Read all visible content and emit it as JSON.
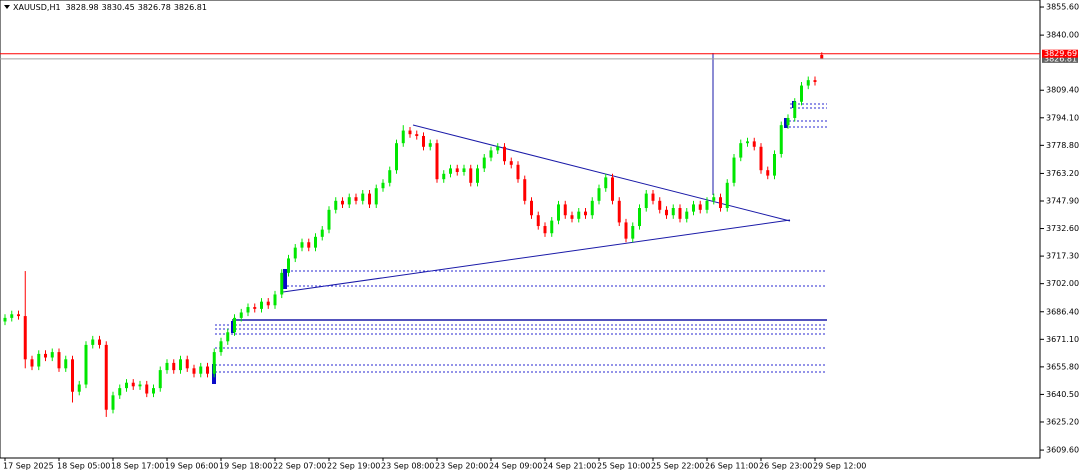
{
  "chart_data": {
    "type": "candlestick",
    "title": "XAUUSD,H1",
    "ask_price": 3829.69,
    "up_color": "#00e600",
    "down_color": "#ff0000",
    "ylim": [
      3605.2,
      3859.5
    ],
    "yticks": [
      {
        "value": 3855.6,
        "label": "3855.60"
      },
      {
        "value": 3840,
        "label": "3840.00"
      },
      {
        "value": 3809.4,
        "label": "3809.40"
      },
      {
        "value": 3794.1,
        "label": "3794.10"
      },
      {
        "value": 3778.8,
        "label": "3778.80"
      },
      {
        "value": 3763.2,
        "label": "3763.20"
      },
      {
        "value": 3747.9,
        "label": "3747.90"
      },
      {
        "value": 3732.6,
        "label": "3732.60"
      },
      {
        "value": 3717.3,
        "label": "3717.30"
      },
      {
        "value": 3702,
        "label": "3702.00"
      },
      {
        "value": 3686.4,
        "label": "3686.40"
      },
      {
        "value": 3671.1,
        "label": "3671.10"
      },
      {
        "value": 3655.8,
        "label": "3655.80"
      },
      {
        "value": 3640.5,
        "label": "3640.50"
      },
      {
        "value": 3625.2,
        "label": "3625.20"
      },
      {
        "value": 3609.6,
        "label": "3609.60"
      }
    ],
    "categories": [
      "17 Sep 2025",
      null,
      null,
      null,
      null,
      null,
      null,
      null,
      "18 Sep 05:00",
      null,
      null,
      null,
      null,
      null,
      null,
      null,
      "18 Sep 17:00",
      null,
      null,
      null,
      null,
      null,
      null,
      null,
      "19 Sep 06:00",
      null,
      null,
      null,
      null,
      null,
      null,
      null,
      "19 Sep 18:00",
      null,
      null,
      null,
      null,
      null,
      null,
      null,
      "22 Sep 07:00",
      null,
      null,
      null,
      null,
      null,
      null,
      null,
      "22 Sep 19:00",
      null,
      null,
      null,
      null,
      null,
      null,
      null,
      "23 Sep 08:00",
      null,
      null,
      null,
      null,
      null,
      null,
      null,
      "23 Sep 20:00",
      null,
      null,
      null,
      null,
      null,
      null,
      null,
      "24 Sep 09:00",
      null,
      null,
      null,
      null,
      null,
      null,
      null,
      "24 Sep 21:00",
      null,
      null,
      null,
      null,
      null,
      null,
      null,
      "25 Sep 10:00",
      null,
      null,
      null,
      null,
      null,
      null,
      null,
      "25 Sep 22:00",
      null,
      null,
      null,
      null,
      null,
      null,
      null,
      "26 Sep 11:00",
      null,
      null,
      null,
      null,
      null,
      null,
      null,
      "26 Sep 23:00",
      null,
      null,
      null,
      null,
      null,
      null,
      null,
      "29 Sep 12:00",
      null
    ],
    "open": [
      3681,
      3683,
      3685,
      3684,
      3660,
      3656,
      3663,
      3661,
      3664,
      3655,
      3660,
      3642,
      3646,
      3668,
      3671,
      3668,
      3632,
      3640,
      3644,
      3647,
      3645,
      3646,
      3641,
      3644,
      3654,
      3658,
      3654,
      3660,
      3655,
      3652,
      3656,
      3652,
      3664,
      3670,
      3675,
      3683,
      3686,
      3689,
      3688,
      3692,
      3690,
      3696,
      3708,
      3716,
      3722,
      3725,
      3722,
      3728,
      3732,
      3743,
      3748,
      3746,
      3750,
      3748,
      3752,
      3746,
      3755,
      3758,
      3765,
      3780,
      3787,
      3785,
      3784,
      3778,
      3780,
      3760,
      3763,
      3766,
      3764,
      3766,
      3758,
      3766,
      3772,
      3776,
      3778,
      3770,
      3768,
      3760,
      3748,
      3740,
      3734,
      3730,
      3737,
      3746,
      3740,
      3738,
      3742,
      3740,
      3748,
      3755,
      3761,
      3748,
      3736,
      3727,
      3734,
      3744,
      3752,
      3748,
      3743,
      3740,
      3744,
      3738,
      3742,
      3746,
      3743,
      3748,
      3750,
      3744,
      3758,
      3772,
      3780,
      3781,
      3778,
      3765,
      3762,
      3774,
      3790,
      3794,
      3803,
      3812,
      3815,
      3828.98
    ],
    "high": [
      3685,
      3687,
      3687,
      3709,
      3662,
      3665,
      3665,
      3666,
      3666,
      3662,
      3662,
      3648,
      3670,
      3673,
      3673,
      3670,
      3642,
      3646,
      3649,
      3649,
      3648,
      3648,
      3646,
      3656,
      3660,
      3660,
      3662,
      3662,
      3657,
      3658,
      3658,
      3666,
      3672,
      3677,
      3685,
      3688,
      3691,
      3691,
      3694,
      3694,
      3698,
      3710,
      3718,
      3724,
      3727,
      3727,
      3730,
      3734,
      3745,
      3750,
      3750,
      3752,
      3752,
      3754,
      3754,
      3757,
      3760,
      3767,
      3782,
      3790,
      3789,
      3787,
      3786,
      3782,
      3782,
      3765,
      3768,
      3768,
      3768,
      3768,
      3768,
      3774,
      3778,
      3780,
      3780,
      3772,
      3770,
      3762,
      3750,
      3742,
      3736,
      3739,
      3748,
      3748,
      3742,
      3744,
      3744,
      3750,
      3757,
      3763,
      3763,
      3750,
      3738,
      3736,
      3746,
      3754,
      3754,
      3750,
      3745,
      3746,
      3746,
      3744,
      3748,
      3748,
      3750,
      3752,
      3752,
      3760,
      3774,
      3782,
      3783,
      3783,
      3780,
      3767,
      3776,
      3792,
      3796,
      3805,
      3814,
      3817,
      3817,
      3830.45
    ],
    "low": [
      3679,
      3681,
      3682,
      3655,
      3654,
      3654,
      3659,
      3659,
      3653,
      3653,
      3636,
      3640,
      3644,
      3666,
      3666,
      3628,
      3630,
      3638,
      3642,
      3643,
      3643,
      3639,
      3639,
      3642,
      3652,
      3652,
      3652,
      3653,
      3650,
      3650,
      3650,
      3650,
      3662,
      3668,
      3673,
      3681,
      3684,
      3686,
      3686,
      3688,
      3688,
      3694,
      3706,
      3714,
      3720,
      3720,
      3720,
      3726,
      3730,
      3741,
      3744,
      3744,
      3746,
      3746,
      3744,
      3744,
      3753,
      3756,
      3763,
      3778,
      3783,
      3782,
      3776,
      3776,
      3758,
      3758,
      3761,
      3762,
      3762,
      3756,
      3756,
      3764,
      3770,
      3774,
      3768,
      3766,
      3758,
      3746,
      3738,
      3732,
      3728,
      3728,
      3735,
      3738,
      3736,
      3736,
      3738,
      3738,
      3746,
      3753,
      3746,
      3734,
      3725,
      3725,
      3732,
      3742,
      3746,
      3741,
      3738,
      3738,
      3736,
      3736,
      3740,
      3741,
      3741,
      3746,
      3742,
      3742,
      3756,
      3770,
      3778,
      3776,
      3763,
      3760,
      3760,
      3772,
      3788,
      3792,
      3801,
      3810,
      3812,
      3826.78
    ],
    "close": [
      3683,
      3685,
      3684,
      3660,
      3656,
      3663,
      3661,
      3664,
      3655,
      3660,
      3642,
      3646,
      3668,
      3671,
      3668,
      3632,
      3640,
      3644,
      3647,
      3645,
      3646,
      3641,
      3644,
      3654,
      3658,
      3654,
      3660,
      3655,
      3652,
      3656,
      3652,
      3664,
      3670,
      3675,
      3683,
      3686,
      3689,
      3688,
      3692,
      3690,
      3696,
      3708,
      3716,
      3722,
      3725,
      3722,
      3728,
      3732,
      3743,
      3748,
      3746,
      3750,
      3748,
      3752,
      3746,
      3755,
      3758,
      3765,
      3780,
      3787,
      3785,
      3784,
      3778,
      3780,
      3760,
      3763,
      3766,
      3764,
      3766,
      3758,
      3766,
      3772,
      3776,
      3778,
      3770,
      3768,
      3760,
      3748,
      3740,
      3734,
      3730,
      3737,
      3746,
      3740,
      3738,
      3742,
      3740,
      3748,
      3755,
      3761,
      3748,
      3736,
      3727,
      3734,
      3744,
      3752,
      3748,
      3743,
      3740,
      3744,
      3738,
      3742,
      3746,
      3743,
      3748,
      3750,
      3744,
      3758,
      3772,
      3780,
      3781,
      3778,
      3765,
      3762,
      3774,
      3790,
      3794,
      3803,
      3812,
      3815,
      3814,
      3826.81
    ]
  }
}
